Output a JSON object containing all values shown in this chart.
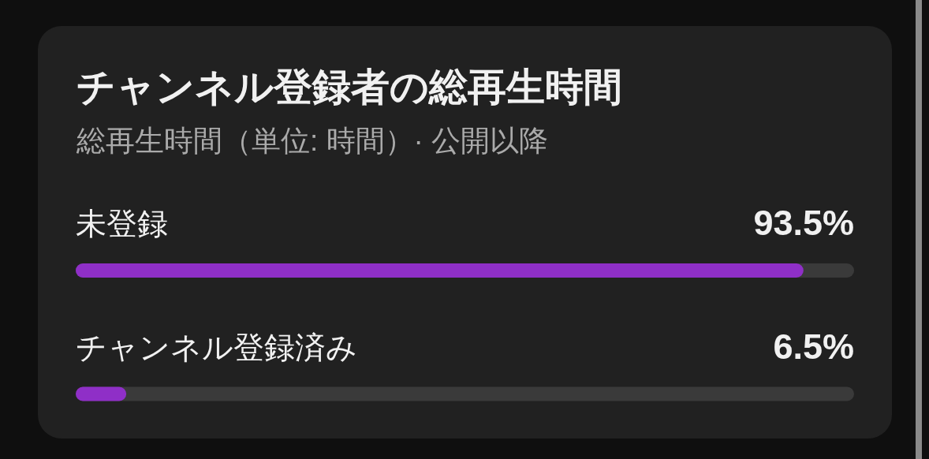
{
  "chart_data": {
    "type": "bar",
    "orientation": "horizontal",
    "title": "チャンネル登録者の総再生時間",
    "subtitle": "総再生時間（単位: 時間）· 公開以降",
    "categories": [
      "未登録",
      "チャンネル登録済み"
    ],
    "values": [
      93.5,
      6.5
    ],
    "color": "#8f2fc7",
    "value_labels": [
      "93.5%",
      "6.5%"
    ],
    "xlim": [
      0,
      100
    ],
    "tick_labels": false
  }
}
